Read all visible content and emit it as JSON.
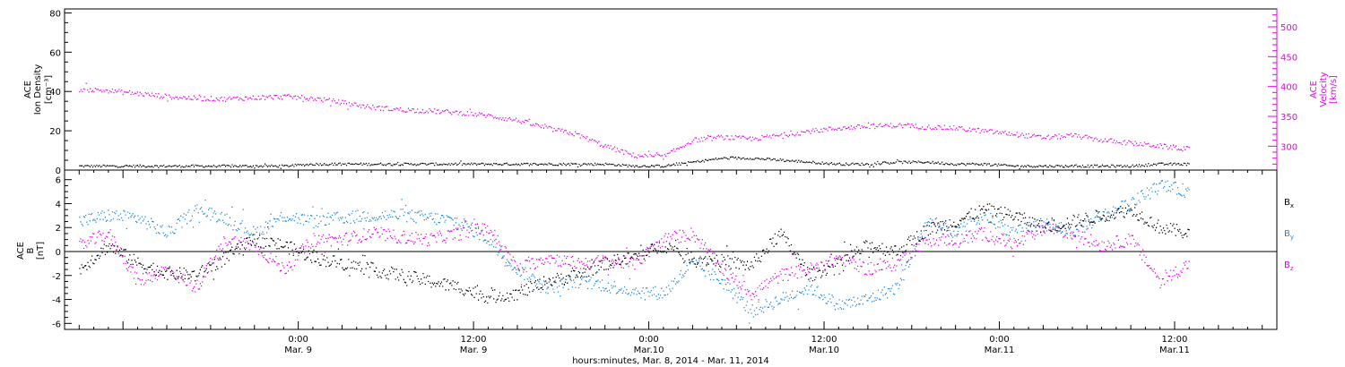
{
  "chart_data": [
    {
      "type": "scatter",
      "ylabel_left": [
        "ACE",
        "Ion Density",
        "[cm⁻³]"
      ],
      "ylabel_right": [
        "ACE",
        "Velocity",
        "[km/s]"
      ],
      "ylim_left": [
        0,
        82
      ],
      "ylim_right": [
        260,
        530
      ],
      "yticks_left": [
        "0",
        "20",
        "40",
        "60",
        "80"
      ],
      "yticks_right": [
        "300",
        "350",
        "400",
        "450",
        "500"
      ],
      "x_hours": [
        -15,
        -13,
        -11,
        -9,
        -7,
        -5,
        -3,
        -1,
        1,
        3,
        5,
        7,
        9,
        11,
        13,
        15,
        17,
        19,
        21,
        23,
        25,
        27,
        29,
        31,
        33,
        35,
        37,
        39,
        41,
        43,
        45,
        47,
        49,
        51,
        53,
        55,
        57,
        59,
        61
      ],
      "series": [
        {
          "name": "Ion Density",
          "color": "#000000",
          "axis": "left",
          "values": [
            2,
            2,
            2,
            2,
            2,
            2,
            2,
            2,
            3,
            3,
            3,
            3,
            3,
            3,
            3,
            3,
            3,
            3,
            3,
            2,
            2,
            4,
            6,
            6,
            5,
            4,
            3,
            3,
            4,
            4,
            3,
            3,
            2,
            2,
            2,
            2,
            2,
            3,
            3
          ]
        },
        {
          "name": "Velocity",
          "color": "#e800e8",
          "axis": "right",
          "values": [
            395,
            393,
            388,
            383,
            380,
            379,
            381,
            383,
            380,
            373,
            365,
            361,
            359,
            356,
            351,
            343,
            330,
            320,
            300,
            284,
            282,
            310,
            315,
            312,
            318,
            325,
            330,
            333,
            335,
            332,
            330,
            325,
            320,
            314,
            318,
            310,
            305,
            300,
            295
          ]
        }
      ]
    },
    {
      "type": "scatter",
      "ylabel": [
        "ACE",
        "B",
        "[nT]"
      ],
      "ylim": [
        -6.5,
        6.8
      ],
      "yticks": [
        "-6",
        "-4",
        "-2",
        "0",
        "2",
        "4",
        "6"
      ],
      "x_hours": [
        -15,
        -13,
        -11,
        -9,
        -7,
        -5,
        -3,
        -1,
        1,
        3,
        5,
        7,
        9,
        11,
        13,
        15,
        17,
        19,
        21,
        23,
        25,
        27,
        29,
        31,
        33,
        35,
        37,
        39,
        41,
        43,
        45,
        47,
        49,
        51,
        53,
        55,
        57,
        59,
        61
      ],
      "legend": [
        "B",
        "B",
        "B"
      ],
      "legend_sub": [
        "x",
        "y",
        "z"
      ],
      "series": [
        {
          "name": "Bx",
          "color": "#000000",
          "values": [
            -1.5,
            0.5,
            -1.0,
            -1.8,
            -2.0,
            -0.5,
            1.0,
            0.5,
            -0.5,
            -1.0,
            -1.5,
            -2.0,
            -2.5,
            -3.0,
            -3.8,
            -3.5,
            -2.5,
            -2.0,
            -1.0,
            -0.5,
            0.5,
            -0.5,
            -0.8,
            -1.2,
            1.5,
            -2.0,
            -1.0,
            0.5,
            0.0,
            1.8,
            2.5,
            3.5,
            3.0,
            2.0,
            2.5,
            3.0,
            3.5,
            2.0,
            1.5
          ]
        },
        {
          "name": "By",
          "color": "#1e86d8",
          "values": [
            2.5,
            3.0,
            2.8,
            1.5,
            3.5,
            2.8,
            1.5,
            3.0,
            2.5,
            2.8,
            3.0,
            3.0,
            2.8,
            2.5,
            1.0,
            -1.5,
            -3.0,
            -2.5,
            -2.8,
            -3.3,
            -3.5,
            -1.0,
            -2.5,
            -5.0,
            -4.0,
            -3.0,
            -4.5,
            -4.0,
            -3.0,
            2.5,
            1.5,
            3.0,
            1.5,
            2.5,
            1.5,
            3.0,
            4.0,
            5.5,
            5.0
          ]
        },
        {
          "name": "Bz",
          "color": "#e800e8",
          "values": [
            0.5,
            1.5,
            -2.5,
            -1.5,
            -3.0,
            1.0,
            0.5,
            -1.5,
            1.0,
            1.0,
            1.5,
            1.2,
            1.0,
            1.5,
            2.0,
            -1.5,
            -0.5,
            -1.0,
            -0.8,
            -1.0,
            1.0,
            1.5,
            -1.5,
            -3.5,
            -2.0,
            -1.5,
            -0.5,
            -1.5,
            -1.0,
            1.0,
            1.0,
            1.5,
            0.5,
            2.0,
            1.5,
            0.5,
            1.0,
            -2.5,
            -1.0
          ]
        }
      ]
    }
  ],
  "x_axis": {
    "ticks": [
      {
        "hours": 0,
        "time": "0:00",
        "date": "Mar. 9"
      },
      {
        "hours": 12,
        "time": "12:00",
        "date": "Mar. 9"
      },
      {
        "hours": 24,
        "time": "0:00",
        "date": "Mar.10"
      },
      {
        "hours": 36,
        "time": "12:00",
        "date": "Mar.10"
      },
      {
        "hours": 48,
        "time": "0:00",
        "date": "Mar.11"
      },
      {
        "hours": 60,
        "time": "12:00",
        "date": "Mar.11"
      }
    ],
    "xlim_hours": [
      -16,
      67
    ],
    "label": "hours:minutes, Mar.  8, 2014 - Mar. 11, 2014"
  }
}
